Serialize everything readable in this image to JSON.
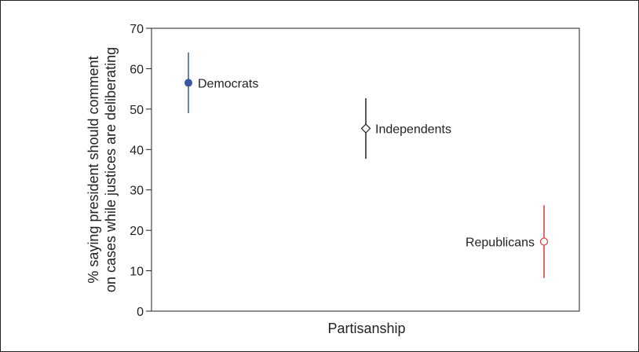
{
  "chart_data": {
    "type": "scatter",
    "xlabel": "Partisanship",
    "ylabel_lines": [
      "% saying president should comment",
      "on cases while justices are deliberating"
    ],
    "ylim": [
      0,
      70
    ],
    "yticks": [
      "0",
      "10",
      "20",
      "30",
      "40",
      "50",
      "60",
      "70"
    ],
    "grid": false,
    "points": [
      {
        "label": "Democrats",
        "value": 56.5,
        "ci": [
          49,
          64
        ],
        "marker": "filled-circle",
        "color": "#3a55a4"
      },
      {
        "label": "Independents",
        "value": 45.2,
        "ci": [
          37.7,
          52.7
        ],
        "marker": "open-diamond",
        "color": "#222222"
      },
      {
        "label": "Republicans",
        "value": 17.2,
        "ci": [
          8.2,
          26.2
        ],
        "marker": "open-circle",
        "color": "#e0393e"
      }
    ]
  }
}
